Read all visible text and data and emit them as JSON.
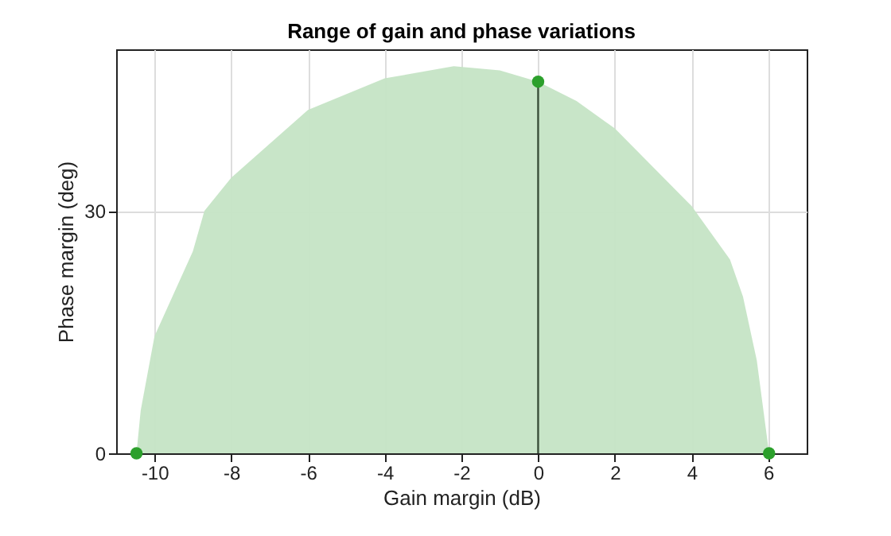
{
  "chart_data": {
    "type": "area",
    "title": "Range of gain and phase variations",
    "xlabel": "Gain margin (dB)",
    "ylabel": "Phase margin (deg)",
    "series": [
      {
        "color": "#c5e4c5",
        "x": [
          -10.47,
          -10.36,
          -10.0,
          -9.0,
          -8.7,
          -8.0,
          -6.0,
          -4.0,
          -2.2,
          -1.0,
          0.0,
          1.0,
          2.0,
          4.0,
          5.0,
          5.34,
          5.7,
          6.02
        ],
        "values": [
          0,
          5.3,
          14.5,
          25,
          30,
          34.1,
          42.5,
          46.4,
          47.9,
          47.4,
          46.0,
          43.6,
          40.2,
          30.6,
          24,
          19.4,
          11.5,
          0
        ]
      },
      {
        "type": "line",
        "color": "#3a4f3a",
        "x": [
          0,
          0
        ],
        "values": [
          0,
          46.0
        ]
      },
      {
        "type": "scatter",
        "marker": "circle",
        "color": "#2ca02c",
        "x": [
          -10.47,
          0,
          6.02
        ],
        "values": [
          0,
          46.0,
          0
        ]
      }
    ],
    "xlim": [
      -11,
      7
    ],
    "ylim": [
      0,
      50
    ],
    "xticks": [
      -10,
      -8,
      -6,
      -4,
      -2,
      0,
      2,
      4,
      6
    ],
    "yticks": [
      0,
      30
    ],
    "grid": true
  }
}
